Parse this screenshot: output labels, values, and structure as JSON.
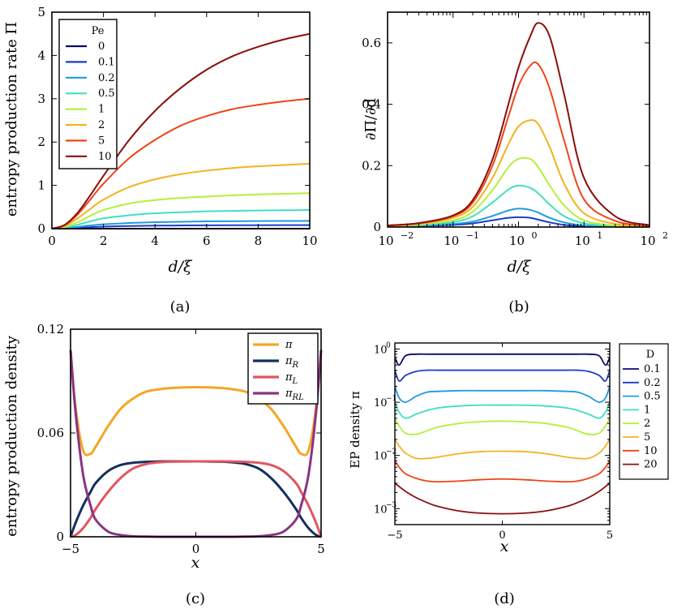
{
  "chart_data": [
    {
      "id": "a",
      "type": "line",
      "caption": "(a)",
      "xlabel": "d/ξ",
      "ylabel": "entropy production rate Π",
      "xlim": [
        0,
        10
      ],
      "ylim": [
        0,
        5
      ],
      "xticks": [
        "0",
        "2",
        "4",
        "6",
        "8",
        "10"
      ],
      "yticks": [
        "0",
        "1",
        "2",
        "3",
        "4",
        "5"
      ],
      "legend_title": "Pe",
      "legend_position": "top-left",
      "x": [
        0,
        0.5,
        1,
        1.5,
        2,
        3,
        4,
        5,
        6,
        7,
        8,
        9,
        10
      ],
      "series": [
        {
          "name": "0",
          "color": "#0a0a6e",
          "values": [
            0,
            0,
            0,
            0,
            0,
            0,
            0,
            0,
            0,
            0,
            0,
            0,
            0
          ]
        },
        {
          "name": "0.1",
          "color": "#1a3cc8",
          "values": [
            0,
            0.005,
            0.02,
            0.035,
            0.048,
            0.062,
            0.07,
            0.074,
            0.077,
            0.079,
            0.08,
            0.081,
            0.082
          ]
        },
        {
          "name": "0.2",
          "color": "#1e9be0",
          "values": [
            0,
            0.01,
            0.04,
            0.075,
            0.1,
            0.13,
            0.15,
            0.16,
            0.168,
            0.172,
            0.176,
            0.178,
            0.18
          ]
        },
        {
          "name": "0.5",
          "color": "#3fe0c0",
          "values": [
            0,
            0.02,
            0.09,
            0.17,
            0.24,
            0.31,
            0.355,
            0.38,
            0.4,
            0.41,
            0.42,
            0.425,
            0.43
          ]
        },
        {
          "name": "1",
          "color": "#b4f03c",
          "values": [
            0,
            0.04,
            0.15,
            0.3,
            0.43,
            0.58,
            0.66,
            0.71,
            0.74,
            0.77,
            0.79,
            0.805,
            0.82
          ]
        },
        {
          "name": "2",
          "color": "#f5b21e",
          "values": [
            0,
            0.06,
            0.24,
            0.46,
            0.67,
            0.96,
            1.14,
            1.26,
            1.34,
            1.4,
            1.44,
            1.47,
            1.5
          ]
        },
        {
          "name": "5",
          "color": "#ee4418",
          "values": [
            0,
            0.08,
            0.33,
            0.68,
            1.04,
            1.63,
            2.05,
            2.38,
            2.6,
            2.76,
            2.86,
            2.94,
            3.0
          ]
        },
        {
          "name": "10",
          "color": "#8b0e0e",
          "values": [
            0,
            0.09,
            0.37,
            0.78,
            1.22,
            2.05,
            2.72,
            3.25,
            3.67,
            3.98,
            4.2,
            4.37,
            4.5
          ]
        }
      ]
    },
    {
      "id": "b",
      "type": "line",
      "caption": "(b)",
      "xlabel": "d/ξ",
      "ylabel": "∂Π/∂d",
      "xscale": "log",
      "xlim": [
        0.01,
        100
      ],
      "ylim": [
        0,
        0.7
      ],
      "xticks": [
        "10",
        "10",
        "10",
        "10",
        "10"
      ],
      "xtick_exponents": [
        "−2",
        "−1",
        "0",
        "1",
        "2"
      ],
      "yticks": [
        "0",
        "0.2",
        "0.4",
        "0.6"
      ],
      "x": [
        0.01,
        0.03,
        0.1,
        0.2,
        0.4,
        0.7,
        1,
        1.5,
        2,
        3,
        5,
        10,
        30,
        100
      ],
      "series": [
        {
          "name": "0.1",
          "color": "#1a3cc8",
          "values": [
            0.003,
            0.004,
            0.007,
            0.012,
            0.022,
            0.03,
            0.032,
            0.03,
            0.024,
            0.015,
            0.007,
            0.003,
            0.001,
            0
          ]
        },
        {
          "name": "0.2",
          "color": "#1e9be0",
          "values": [
            0.003,
            0.005,
            0.01,
            0.018,
            0.036,
            0.054,
            0.06,
            0.056,
            0.047,
            0.03,
            0.015,
            0.005,
            0.001,
            0
          ]
        },
        {
          "name": "0.5",
          "color": "#3fe0c0",
          "values": [
            0.003,
            0.006,
            0.016,
            0.035,
            0.08,
            0.122,
            0.135,
            0.128,
            0.11,
            0.073,
            0.035,
            0.012,
            0.003,
            0
          ]
        },
        {
          "name": "1",
          "color": "#b4f03c",
          "values": [
            0.004,
            0.008,
            0.022,
            0.05,
            0.12,
            0.195,
            0.222,
            0.222,
            0.195,
            0.135,
            0.07,
            0.022,
            0.005,
            0
          ]
        },
        {
          "name": "2",
          "color": "#f5b21e",
          "values": [
            0.004,
            0.01,
            0.03,
            0.066,
            0.16,
            0.27,
            0.328,
            0.348,
            0.335,
            0.26,
            0.14,
            0.045,
            0.01,
            0.002
          ]
        },
        {
          "name": "5",
          "color": "#ee4418",
          "values": [
            0.005,
            0.012,
            0.035,
            0.08,
            0.2,
            0.36,
            0.46,
            0.525,
            0.53,
            0.45,
            0.28,
            0.09,
            0.02,
            0.004
          ]
        },
        {
          "name": "10",
          "color": "#8b0e0e",
          "values": [
            0.005,
            0.013,
            0.038,
            0.088,
            0.22,
            0.4,
            0.52,
            0.62,
            0.665,
            0.62,
            0.43,
            0.16,
            0.035,
            0.006
          ]
        }
      ]
    },
    {
      "id": "c",
      "type": "line",
      "caption": "(c)",
      "xlabel": "x",
      "ylabel": "entropy production density",
      "xlim": [
        -5,
        5
      ],
      "ylim": [
        0,
        0.12
      ],
      "xticks": [
        "−5",
        "0",
        "5"
      ],
      "yticks": [
        "0",
        "0.06",
        "0.12"
      ],
      "legend_position": "top-right",
      "x": [
        -5,
        -4.8,
        -4.5,
        -4.2,
        -4,
        -3.5,
        -3,
        -2.5,
        -2,
        -1.5,
        -1,
        0,
        1,
        1.5,
        2,
        2.5,
        3,
        3.5,
        4,
        4.2,
        4.5,
        4.8,
        5
      ],
      "series": [
        {
          "name": "π",
          "color": "#f5a623",
          "values": [
            0.108,
            0.075,
            0.05,
            0.048,
            0.052,
            0.064,
            0.074,
            0.08,
            0.0838,
            0.0852,
            0.086,
            0.0865,
            0.086,
            0.0852,
            0.0838,
            0.08,
            0.074,
            0.064,
            0.052,
            0.048,
            0.05,
            0.075,
            0.108
          ]
        },
        {
          "name": "π_R",
          "color": "#14305c",
          "values": [
            0,
            0.008,
            0.018,
            0.026,
            0.031,
            0.038,
            0.0415,
            0.0428,
            0.0433,
            0.0435,
            0.0436,
            0.0436,
            0.0434,
            0.043,
            0.042,
            0.0395,
            0.034,
            0.026,
            0.016,
            0.011,
            0.005,
            0.001,
            0
          ]
        },
        {
          "name": "π_L",
          "color": "#e25561",
          "values": [
            0,
            0.001,
            0.005,
            0.011,
            0.016,
            0.026,
            0.034,
            0.0395,
            0.042,
            0.043,
            0.0434,
            0.0436,
            0.0436,
            0.0435,
            0.0433,
            0.0428,
            0.0415,
            0.038,
            0.031,
            0.026,
            0.018,
            0.008,
            0
          ]
        },
        {
          "name": "π_RL",
          "color": "#8a3384",
          "values": [
            0.108,
            0.072,
            0.036,
            0.018,
            0.01,
            0.003,
            0.001,
            0.0003,
            0.0001,
            0,
            0,
            0,
            0,
            0,
            0.0001,
            0.0003,
            0.001,
            0.003,
            0.01,
            0.018,
            0.036,
            0.072,
            0.108
          ]
        }
      ]
    },
    {
      "id": "d",
      "type": "line",
      "caption": "(d)",
      "xlabel": "x",
      "ylabel": "EP density π",
      "yscale": "log",
      "xlim": [
        -5,
        5
      ],
      "ylim": [
        0.0005,
        1.3
      ],
      "xticks": [
        "−5",
        "0",
        "5"
      ],
      "ytick_exponents": [
        "0",
        "−1",
        "−2",
        "−3"
      ],
      "legend_title": "D",
      "legend_position": "outside-right",
      "x": [
        -5,
        -4.8,
        -4.5,
        -4,
        -3.5,
        -3,
        -2,
        -1,
        0,
        1,
        2,
        3,
        3.5,
        4,
        4.5,
        4.8,
        5
      ],
      "series": [
        {
          "name": "0.1",
          "color": "#0a0a6e",
          "values": [
            0.7,
            0.5,
            0.75,
            0.8,
            0.8,
            0.8,
            0.8,
            0.8,
            0.8,
            0.8,
            0.8,
            0.8,
            0.8,
            0.8,
            0.75,
            0.5,
            0.7
          ]
        },
        {
          "name": "0.2",
          "color": "#1a3cc8",
          "values": [
            0.4,
            0.25,
            0.32,
            0.38,
            0.4,
            0.4,
            0.4,
            0.4,
            0.4,
            0.4,
            0.4,
            0.4,
            0.4,
            0.38,
            0.32,
            0.25,
            0.4
          ]
        },
        {
          "name": "0.5",
          "color": "#1e9be0",
          "values": [
            0.2,
            0.12,
            0.1,
            0.13,
            0.155,
            0.16,
            0.165,
            0.165,
            0.165,
            0.165,
            0.165,
            0.16,
            0.155,
            0.13,
            0.1,
            0.12,
            0.2
          ]
        },
        {
          "name": "1",
          "color": "#3fe0c0",
          "values": [
            0.1,
            0.065,
            0.05,
            0.06,
            0.07,
            0.078,
            0.085,
            0.088,
            0.088,
            0.088,
            0.085,
            0.078,
            0.07,
            0.06,
            0.05,
            0.065,
            0.1
          ]
        },
        {
          "name": "2",
          "color": "#b4f03c",
          "values": [
            0.05,
            0.036,
            0.026,
            0.025,
            0.029,
            0.034,
            0.04,
            0.043,
            0.044,
            0.043,
            0.04,
            0.034,
            0.029,
            0.025,
            0.026,
            0.036,
            0.05
          ]
        },
        {
          "name": "5",
          "color": "#f5b21e",
          "values": [
            0.02,
            0.015,
            0.011,
            0.0088,
            0.0088,
            0.0093,
            0.0108,
            0.0118,
            0.012,
            0.0118,
            0.0108,
            0.0093,
            0.0088,
            0.0088,
            0.011,
            0.015,
            0.02
          ]
        },
        {
          "name": "10",
          "color": "#ee4418",
          "values": [
            0.008,
            0.006,
            0.0045,
            0.0037,
            0.0033,
            0.0032,
            0.0033,
            0.0035,
            0.0036,
            0.0035,
            0.0033,
            0.0032,
            0.0033,
            0.0037,
            0.0045,
            0.006,
            0.008
          ]
        },
        {
          "name": "20",
          "color": "#8b0e0e",
          "values": [
            0.003,
            0.0026,
            0.0021,
            0.0016,
            0.0013,
            0.0011,
            0.0009,
            0.00082,
            0.0008,
            0.00082,
            0.0009,
            0.0011,
            0.0013,
            0.0016,
            0.0021,
            0.0026,
            0.003
          ]
        }
      ]
    }
  ]
}
